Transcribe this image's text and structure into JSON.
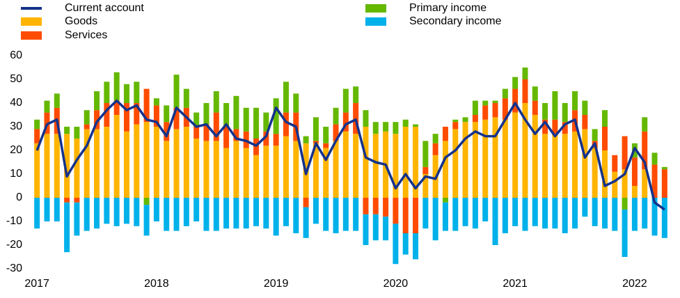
{
  "chart_data": {
    "type": "bar",
    "stacked": true,
    "categories": [
      "2017",
      null,
      null,
      null,
      null,
      null,
      null,
      null,
      null,
      null,
      null,
      null,
      "2018",
      null,
      null,
      null,
      null,
      null,
      null,
      null,
      null,
      null,
      null,
      null,
      "2019",
      null,
      null,
      null,
      null,
      null,
      null,
      null,
      null,
      null,
      null,
      null,
      "2020",
      null,
      null,
      null,
      null,
      null,
      null,
      null,
      null,
      null,
      null,
      null,
      "2021",
      null,
      null,
      null,
      null,
      null,
      null,
      null,
      null,
      null,
      null,
      null,
      "2022",
      null,
      null,
      null
    ],
    "series": [
      {
        "name": "Current account",
        "type": "line",
        "color": "#14328c",
        "values": [
          20,
          31,
          33,
          9,
          16,
          22,
          32,
          37,
          41,
          37,
          39,
          33,
          32,
          26,
          38,
          34,
          30,
          31,
          26,
          31,
          25,
          24,
          22,
          26,
          38,
          32,
          30,
          10,
          23,
          16,
          24,
          31,
          33,
          17,
          15,
          14,
          4,
          10,
          4,
          9,
          8,
          17,
          20,
          25,
          28,
          26,
          26,
          33,
          40,
          33,
          27,
          32,
          26,
          31,
          33,
          17,
          23,
          5,
          7,
          10,
          21,
          15,
          -2,
          -5
        ]
      },
      {
        "name": "Goods",
        "type": "bar",
        "color": "#ffb400",
        "values": [
          23,
          27,
          27,
          27,
          25,
          29,
          29,
          30,
          35,
          28,
          31,
          32,
          30,
          24,
          29,
          30,
          25,
          24,
          24,
          21,
          24,
          21,
          18,
          22,
          22,
          26,
          24,
          23,
          23,
          21,
          24,
          28,
          27,
          30,
          27,
          28,
          27,
          30,
          30,
          10,
          18,
          24,
          29,
          32,
          32,
          33,
          34,
          33,
          36,
          40,
          35,
          27,
          27,
          27,
          28,
          29,
          21,
          20,
          11,
          12,
          5,
          12,
          0,
          0
        ]
      },
      {
        "name": "Services",
        "type": "bar",
        "color": "#ff4b00",
        "values": [
          6,
          9,
          11,
          -2,
          -2,
          2,
          8,
          10,
          6,
          12,
          9,
          14,
          9,
          8,
          9,
          8,
          5,
          7,
          12,
          9,
          5,
          7,
          7,
          6,
          5,
          10,
          12,
          -4,
          1,
          2,
          7,
          8,
          13,
          -7,
          -7,
          -8,
          -11,
          -15,
          -15,
          3,
          5,
          6,
          3,
          0,
          3,
          6,
          6,
          9,
          10,
          10,
          6,
          6,
          6,
          5,
          9,
          6,
          3,
          10,
          7,
          14,
          12,
          16,
          14,
          12
        ]
      },
      {
        "name": "Primary income",
        "type": "bar",
        "color": "#65b800",
        "values": [
          4,
          5,
          6,
          3,
          5,
          6,
          8,
          9,
          12,
          8,
          9,
          -3,
          3,
          7,
          14,
          8,
          6,
          9,
          9,
          10,
          14,
          10,
          13,
          8,
          15,
          13,
          8,
          3,
          10,
          7,
          7,
          10,
          7,
          7,
          5,
          4,
          5,
          3,
          1,
          11,
          4,
          -2,
          1,
          2,
          6,
          2,
          1,
          4,
          5,
          5,
          6,
          7,
          12,
          8,
          8,
          6,
          5,
          7,
          0,
          -5,
          6,
          6,
          5,
          1
        ]
      },
      {
        "name": "Secondary income",
        "type": "bar",
        "color": "#00b1ea",
        "values": [
          -13,
          -10,
          -10,
          -21,
          -14,
          -14,
          -13,
          -11,
          -12,
          -11,
          -12,
          -13,
          -10,
          -14,
          -14,
          -12,
          -10,
          -14,
          -14,
          -13,
          -13,
          -13,
          -12,
          -13,
          -16,
          -12,
          -15,
          -13,
          -11,
          -14,
          -15,
          -14,
          -14,
          -13,
          -11,
          -10,
          -17,
          -9,
          -11,
          -13,
          -18,
          -12,
          -14,
          -12,
          -13,
          -10,
          -20,
          -15,
          -12,
          -14,
          -12,
          -13,
          -13,
          -15,
          -13,
          -8,
          -12,
          -13,
          -14,
          -20,
          -14,
          -13,
          -16,
          -17
        ]
      }
    ],
    "ylim": [
      -30,
      60
    ],
    "yticks": [
      -30,
      -20,
      -10,
      0,
      10,
      20,
      30,
      40,
      50,
      60
    ],
    "grid": false
  }
}
